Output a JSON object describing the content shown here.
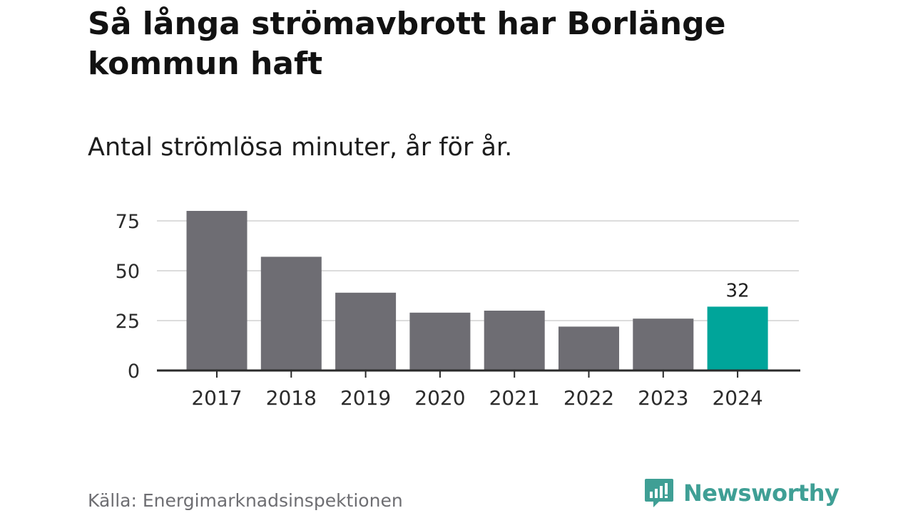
{
  "colors": {
    "bar_default": "#6e6d73",
    "bar_highlight": "#00a59a",
    "grid": "#dcdcdc",
    "axis": "#2a2a2a",
    "brand": "#3f9f95"
  },
  "chart_data": {
    "type": "bar",
    "title": "Så långa strömavbrott har Borlänge kommun haft",
    "subtitle": "Antal strömlösa minuter, år för år.",
    "categories": [
      "2017",
      "2018",
      "2019",
      "2020",
      "2021",
      "2022",
      "2023",
      "2024"
    ],
    "values": [
      80,
      57,
      39,
      29,
      30,
      22,
      26,
      32
    ],
    "highlight_index": 7,
    "data_labels": [
      {
        "index": 7,
        "text": "32"
      }
    ],
    "yticks": [
      {
        "value": 0,
        "label": "0"
      },
      {
        "value": 25,
        "label": "25"
      },
      {
        "value": 50,
        "label": "50"
      },
      {
        "value": 75,
        "label": "75"
      }
    ],
    "ylim": [
      0,
      80
    ],
    "xlabel": "",
    "ylabel": "",
    "grid": true,
    "legend": "none"
  },
  "footer": {
    "source": "Källa: Energimarknadsinspektionen",
    "brand_name": "Newsworthy",
    "brand_icon": "newsworthy-logo-icon"
  }
}
